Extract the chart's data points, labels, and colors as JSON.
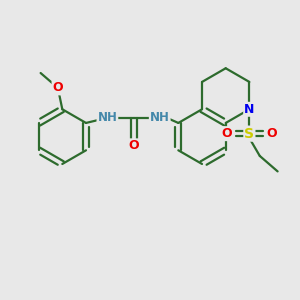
{
  "background_color": "#e8e8e8",
  "bond_color": "#2d6b2d",
  "bond_width": 1.6,
  "atom_colors": {
    "N": "#0000ee",
    "O": "#ee0000",
    "S": "#cccc00",
    "H_label": "#4488aa"
  },
  "fig_size": [
    3.0,
    3.0
  ],
  "dpi": 100
}
